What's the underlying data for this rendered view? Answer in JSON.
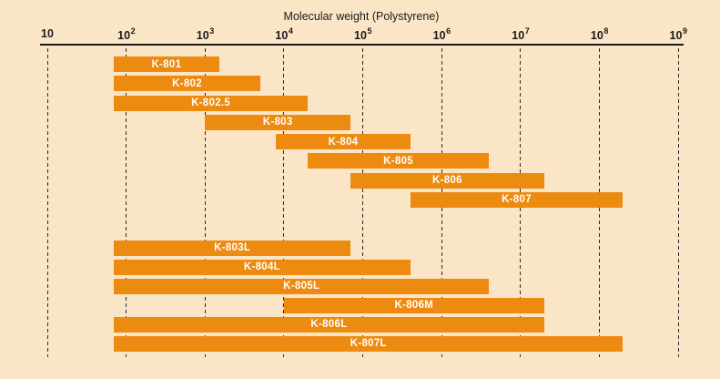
{
  "title": "Molecular weight (Polystyrene)",
  "colors": {
    "background": "#FAE6C7",
    "bar": "#ED8A10",
    "bar_label_text": "#FFFFFF",
    "axis_line": "#1A1A1A",
    "tick_text": "#1A1A1A",
    "gridline": "#2B2B2B"
  },
  "chart_data": {
    "type": "bar",
    "subtype": "horizontal-range-bars",
    "title": "Molecular weight (Polystyrene)",
    "xlabel": "Molecular weight (Polystyrene)",
    "ylabel": "",
    "x_axis": {
      "scale": "log10",
      "range": [
        10,
        1000000000
      ],
      "tick_exponents": [
        1,
        2,
        3,
        4,
        5,
        6,
        7,
        8,
        9
      ],
      "tick_base": "10",
      "grid": "vertical-dashed",
      "position": "top"
    },
    "legend_position": "none",
    "series": [
      {
        "name": "K-801",
        "group": "standard",
        "from": 70,
        "to": 1500
      },
      {
        "name": "K-802",
        "group": "standard",
        "from": 70,
        "to": 5000
      },
      {
        "name": "K-802.5",
        "group": "standard",
        "from": 70,
        "to": 20000
      },
      {
        "name": "K-803",
        "group": "standard",
        "from": 1000,
        "to": 70000
      },
      {
        "name": "K-804",
        "group": "standard",
        "from": 8000,
        "to": 400000
      },
      {
        "name": "K-805",
        "group": "standard",
        "from": 20000,
        "to": 4000000
      },
      {
        "name": "K-806",
        "group": "standard",
        "from": 70000,
        "to": 20000000
      },
      {
        "name": "K-807",
        "group": "standard",
        "from": 400000,
        "to": 200000000
      },
      {
        "name": "K-803L",
        "group": "linear",
        "from": 70,
        "to": 70000
      },
      {
        "name": "K-804L",
        "group": "linear",
        "from": 70,
        "to": 400000
      },
      {
        "name": "K-805L",
        "group": "linear",
        "from": 70,
        "to": 4000000
      },
      {
        "name": "K-806M",
        "group": "linear",
        "from": 10000,
        "to": 20000000
      },
      {
        "name": "K-806L",
        "group": "linear",
        "from": 70,
        "to": 20000000
      },
      {
        "name": "K-807L",
        "group": "linear",
        "from": 70,
        "to": 200000000
      }
    ]
  }
}
